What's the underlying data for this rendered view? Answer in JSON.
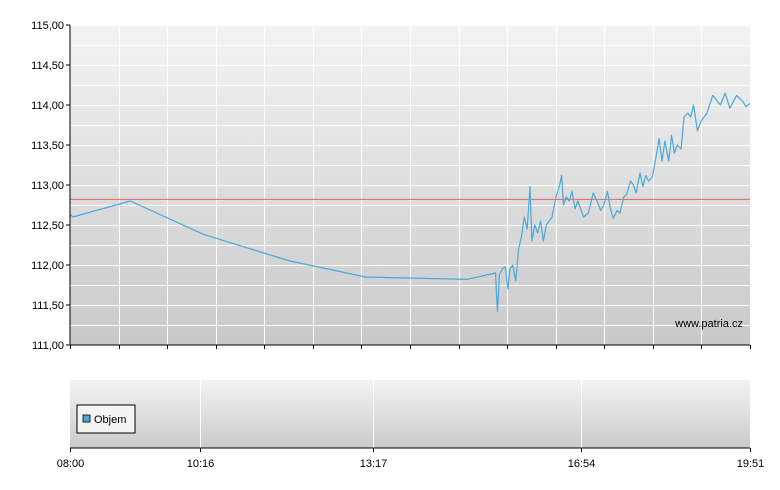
{
  "chart_data": {
    "type": "line",
    "watermark": "www.patria.cz",
    "reference_line": 112.82,
    "ylim": [
      111.0,
      115.0
    ],
    "y_ticks": [
      "115,00",
      "114,50",
      "114,00",
      "113,50",
      "113,00",
      "112,50",
      "112,00",
      "111,50",
      "111,00"
    ],
    "y_tick_values": [
      115.0,
      114.5,
      114.0,
      113.5,
      113.0,
      112.5,
      112.0,
      111.5,
      111.0
    ],
    "x_ticks": [
      "08:00",
      "10:16",
      "13:17",
      "16:54",
      "19:51"
    ],
    "x_tick_minutes": [
      480,
      616,
      797,
      1014,
      1191
    ],
    "x_range_minutes": [
      480,
      1191
    ],
    "series": [
      {
        "points": [
          [
            480,
            112.63
          ],
          [
            483,
            112.6
          ],
          [
            543,
            112.8
          ],
          [
            620,
            112.38
          ],
          [
            710,
            112.05
          ],
          [
            789,
            111.85
          ],
          [
            895,
            111.82
          ],
          [
            925,
            111.9
          ],
          [
            926,
            111.6
          ],
          [
            927,
            111.42
          ],
          [
            929,
            111.88
          ],
          [
            932,
            111.95
          ],
          [
            935,
            111.98
          ],
          [
            938,
            111.7
          ],
          [
            940,
            111.95
          ],
          [
            943,
            112.0
          ],
          [
            946,
            111.8
          ],
          [
            949,
            112.2
          ],
          [
            952,
            112.35
          ],
          [
            955,
            112.6
          ],
          [
            958,
            112.45
          ],
          [
            961,
            112.98
          ],
          [
            963,
            112.3
          ],
          [
            966,
            112.5
          ],
          [
            969,
            112.4
          ],
          [
            972,
            112.55
          ],
          [
            975,
            112.3
          ],
          [
            978,
            112.5
          ],
          [
            984,
            112.6
          ],
          [
            988,
            112.85
          ],
          [
            992,
            113.0
          ],
          [
            994,
            113.12
          ],
          [
            996,
            112.75
          ],
          [
            999,
            112.85
          ],
          [
            1002,
            112.8
          ],
          [
            1005,
            112.92
          ],
          [
            1008,
            112.7
          ],
          [
            1011,
            112.8
          ],
          [
            1014,
            112.7
          ],
          [
            1017,
            112.6
          ],
          [
            1022,
            112.65
          ],
          [
            1027,
            112.9
          ],
          [
            1031,
            112.8
          ],
          [
            1035,
            112.68
          ],
          [
            1038,
            112.75
          ],
          [
            1042,
            112.92
          ],
          [
            1045,
            112.7
          ],
          [
            1048,
            112.58
          ],
          [
            1052,
            112.68
          ],
          [
            1055,
            112.65
          ],
          [
            1059,
            112.85
          ],
          [
            1062,
            112.88
          ],
          [
            1066,
            113.05
          ],
          [
            1069,
            113.0
          ],
          [
            1072,
            112.9
          ],
          [
            1076,
            113.15
          ],
          [
            1079,
            112.98
          ],
          [
            1082,
            113.12
          ],
          [
            1085,
            113.05
          ],
          [
            1089,
            113.1
          ],
          [
            1092,
            113.3
          ],
          [
            1096,
            113.58
          ],
          [
            1099,
            113.3
          ],
          [
            1102,
            113.55
          ],
          [
            1106,
            113.3
          ],
          [
            1109,
            113.62
          ],
          [
            1112,
            113.4
          ],
          [
            1115,
            113.5
          ],
          [
            1119,
            113.45
          ],
          [
            1122,
            113.85
          ],
          [
            1126,
            113.9
          ],
          [
            1129,
            113.85
          ],
          [
            1132,
            114.0
          ],
          [
            1136,
            113.68
          ],
          [
            1140,
            113.8
          ],
          [
            1146,
            113.9
          ],
          [
            1152,
            114.12
          ],
          [
            1160,
            114.0
          ],
          [
            1165,
            114.15
          ],
          [
            1170,
            113.96
          ],
          [
            1177,
            114.12
          ],
          [
            1183,
            114.05
          ],
          [
            1187,
            113.98
          ],
          [
            1191,
            114.02
          ]
        ]
      }
    ],
    "volume_panel": {
      "legend_label": "Objem"
    },
    "colors": {
      "series": "#4aa8d8",
      "reference": "#e06666",
      "plot_bg_top": "#f2f2f2",
      "plot_bg_bottom": "#c8c8c8",
      "grid": "#ffffff",
      "axis": "#000000",
      "legend_swatch": "#4aa8d8"
    }
  }
}
